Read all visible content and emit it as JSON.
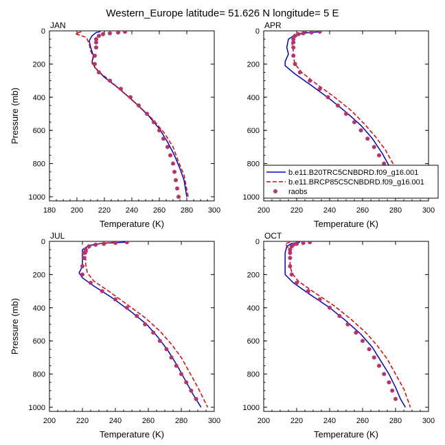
{
  "figure": {
    "title": "Western_Europe  latitude= 51.626 N longitude= 5 E"
  },
  "legend": {
    "entries": [
      {
        "label": "b.e11.B20TRC5CNBDRD.f09_g16.001",
        "style": "solid",
        "color": "#0000cc"
      },
      {
        "label": "b.e11.BRCP85C5CNBDRD.f09_g16.001",
        "style": "dashed",
        "color": "#dd0000"
      },
      {
        "label": "raobs",
        "style": "marker",
        "color": "#b8336a"
      }
    ]
  },
  "colors": {
    "model_historical": "#0000cc",
    "model_rcp85": "#dd0000",
    "raobs": "#b8336a"
  },
  "chart_data": [
    {
      "type": "line",
      "panel": "JAN",
      "title": "JAN",
      "xlabel": "Temperature (K)",
      "ylabel": "Pressure (mb)",
      "xlim": [
        180,
        300
      ],
      "ylim": [
        1025,
        0
      ],
      "xticks": [
        180,
        200,
        220,
        240,
        260,
        280,
        300
      ],
      "yticks": [
        0,
        200,
        400,
        600,
        800,
        1000
      ],
      "series": [
        {
          "name": "b.e11.B20TRC5CNBDRD.f09_g16.001",
          "style": "solid",
          "points": [
            [
              217,
              5
            ],
            [
              214,
              10
            ],
            [
              211,
              30
            ],
            [
              209,
              60
            ],
            [
              210,
              100
            ],
            [
              212,
              150
            ],
            [
              211,
              185
            ],
            [
              213,
              220
            ],
            [
              220,
              280
            ],
            [
              231,
              350
            ],
            [
              242,
              430
            ],
            [
              252,
              510
            ],
            [
              260,
              590
            ],
            [
              266,
              670
            ],
            [
              271,
              750
            ],
            [
              275,
              830
            ],
            [
              278,
              900
            ],
            [
              280,
              1000
            ]
          ]
        },
        {
          "name": "b.e11.BRCP85C5CNBDRD.f09_g16.001",
          "style": "dashed",
          "points": [
            [
              203,
              5
            ],
            [
              199,
              18
            ],
            [
              203,
              28
            ],
            [
              207,
              40
            ],
            [
              209,
              80
            ],
            [
              210,
              120
            ],
            [
              212,
              160
            ],
            [
              211,
              195
            ],
            [
              215,
              240
            ],
            [
              224,
              300
            ],
            [
              235,
              380
            ],
            [
              246,
              460
            ],
            [
              256,
              540
            ],
            [
              264,
              620
            ],
            [
              270,
              700
            ],
            [
              274,
              790
            ],
            [
              278,
              870
            ],
            [
              281,
              1000
            ]
          ]
        },
        {
          "name": "raobs",
          "style": "marker",
          "points": [
            [
              235,
              5
            ],
            [
              230,
              10
            ],
            [
              224,
              15
            ],
            [
              219,
              20
            ],
            [
              216,
              30
            ],
            [
              214,
              50
            ],
            [
              214,
              70
            ],
            [
              214,
              100
            ],
            [
              213,
              150
            ],
            [
              213,
              200
            ],
            [
              216,
              250
            ],
            [
              224,
              300
            ],
            [
              232,
              350
            ],
            [
              239,
              400
            ],
            [
              245,
              450
            ],
            [
              251,
              500
            ],
            [
              256,
              550
            ],
            [
              260,
              600
            ],
            [
              263,
              650
            ],
            [
              266,
              700
            ],
            [
              268,
              750
            ],
            [
              270,
              800
            ],
            [
              271,
              850
            ],
            [
              272,
              900
            ],
            [
              273,
              950
            ],
            [
              274,
              1000
            ]
          ]
        }
      ]
    },
    {
      "type": "line",
      "panel": "APR",
      "title": "APR",
      "xlabel": "Temperature (K)",
      "ylabel": "",
      "xlim": [
        200,
        300
      ],
      "ylim": [
        1025,
        0
      ],
      "xticks": [
        200,
        220,
        240,
        260,
        280,
        300
      ],
      "yticks": [
        0,
        200,
        400,
        600,
        800,
        1000
      ],
      "series": [
        {
          "name": "b.e11.B20TRC5CNBDRD.f09_g16.001",
          "style": "solid",
          "points": [
            [
              235,
              5
            ],
            [
              226,
              12
            ],
            [
              219,
              25
            ],
            [
              215,
              50
            ],
            [
              214,
              100
            ],
            [
              215,
              140
            ],
            [
              213,
              185
            ],
            [
              213,
              210
            ],
            [
              219,
              260
            ],
            [
              229,
              330
            ],
            [
              240,
              410
            ],
            [
              250,
              490
            ],
            [
              259,
              570
            ],
            [
              266,
              650
            ],
            [
              272,
              740
            ],
            [
              277,
              830
            ],
            [
              281,
              920
            ],
            [
              284,
              1000
            ]
          ]
        },
        {
          "name": "b.e11.BRCP85C5CNBDRD.f09_g16.001",
          "style": "dashed",
          "points": [
            [
              226,
              5
            ],
            [
              222,
              15
            ],
            [
              219,
              30
            ],
            [
              217,
              70
            ],
            [
              218,
              120
            ],
            [
              218,
              160
            ],
            [
              219,
              200
            ],
            [
              223,
              250
            ],
            [
              232,
              320
            ],
            [
              243,
              400
            ],
            [
              253,
              480
            ],
            [
              261,
              560
            ],
            [
              268,
              640
            ],
            [
              274,
              720
            ],
            [
              279,
              810
            ],
            [
              283,
              900
            ],
            [
              286,
              1000
            ]
          ]
        },
        {
          "name": "raobs",
          "style": "marker",
          "points": [
            [
              234,
              5
            ],
            [
              229,
              10
            ],
            [
              224,
              15
            ],
            [
              221,
              20
            ],
            [
              219,
              30
            ],
            [
              218,
              50
            ],
            [
              218,
              70
            ],
            [
              218,
              100
            ],
            [
              218,
              150
            ],
            [
              219,
              200
            ],
            [
              222,
              250
            ],
            [
              228,
              300
            ],
            [
              234,
              350
            ],
            [
              239,
              400
            ],
            [
              245,
              450
            ],
            [
              250,
              500
            ],
            [
              255,
              550
            ],
            [
              259,
              600
            ],
            [
              263,
              650
            ],
            [
              267,
              700
            ],
            [
              270,
              750
            ],
            [
              273,
              800
            ],
            [
              276,
              850
            ],
            [
              278,
              900
            ],
            [
              280,
              950
            ],
            [
              282,
              1000
            ]
          ]
        }
      ]
    },
    {
      "type": "line",
      "panel": "JUL",
      "title": "JUL",
      "xlabel": "Temperature (K)",
      "ylabel": "Pressure (mb)",
      "xlim": [
        200,
        300
      ],
      "ylim": [
        1025,
        0
      ],
      "xticks": [
        200,
        220,
        240,
        260,
        280,
        300
      ],
      "yticks": [
        0,
        200,
        400,
        600,
        800,
        1000
      ],
      "series": [
        {
          "name": "b.e11.B20TRC5CNBDRD.f09_g16.001",
          "style": "solid",
          "points": [
            [
              246,
              5
            ],
            [
              232,
              12
            ],
            [
              224,
              25
            ],
            [
              220,
              50
            ],
            [
              220,
              100
            ],
            [
              220,
              150
            ],
            [
              218,
              190
            ],
            [
              220,
              220
            ],
            [
              227,
              270
            ],
            [
              238,
              340
            ],
            [
              249,
              420
            ],
            [
              259,
              500
            ],
            [
              266,
              580
            ],
            [
              272,
              660
            ],
            [
              277,
              740
            ],
            [
              282,
              830
            ],
            [
              287,
              920
            ],
            [
              292,
              1000
            ]
          ]
        },
        {
          "name": "b.e11.BRCP85C5CNBDRD.f09_g16.001",
          "style": "dashed",
          "points": [
            [
              240,
              5
            ],
            [
              229,
              15
            ],
            [
              224,
              35
            ],
            [
              222,
              80
            ],
            [
              222,
              140
            ],
            [
              223,
              190
            ],
            [
              227,
              240
            ],
            [
              236,
              300
            ],
            [
              247,
              380
            ],
            [
              258,
              460
            ],
            [
              267,
              540
            ],
            [
              274,
              620
            ],
            [
              280,
              700
            ],
            [
              285,
              790
            ],
            [
              290,
              880
            ],
            [
              296,
              1000
            ]
          ]
        },
        {
          "name": "raobs",
          "style": "marker",
          "points": [
            [
              247,
              5
            ],
            [
              240,
              10
            ],
            [
              233,
              15
            ],
            [
              228,
              20
            ],
            [
              224,
              30
            ],
            [
              222,
              50
            ],
            [
              221,
              70
            ],
            [
              221,
              100
            ],
            [
              220,
              150
            ],
            [
              220,
              200
            ],
            [
              225,
              250
            ],
            [
              232,
              300
            ],
            [
              240,
              350
            ],
            [
              247,
              400
            ],
            [
              253,
              450
            ],
            [
              258,
              500
            ],
            [
              263,
              550
            ],
            [
              267,
              600
            ],
            [
              271,
              650
            ],
            [
              274,
              700
            ],
            [
              277,
              750
            ],
            [
              280,
              800
            ],
            [
              283,
              850
            ],
            [
              286,
              900
            ],
            [
              289,
              950
            ]
          ]
        }
      ]
    },
    {
      "type": "line",
      "panel": "OCT",
      "title": "OCT",
      "xlabel": "Temperature (K)",
      "ylabel": "",
      "xlim": [
        200,
        300
      ],
      "ylim": [
        1025,
        0
      ],
      "xticks": [
        200,
        220,
        240,
        260,
        280,
        300
      ],
      "yticks": [
        0,
        200,
        400,
        600,
        800,
        1000
      ],
      "series": [
        {
          "name": "b.e11.B20TRC5CNBDRD.f09_g16.001",
          "style": "solid",
          "points": [
            [
              222,
              5
            ],
            [
              217,
              12
            ],
            [
              214,
              30
            ],
            [
              213,
              70
            ],
            [
              213,
              120
            ],
            [
              213,
              160
            ],
            [
              213,
              200
            ],
            [
              218,
              250
            ],
            [
              228,
              320
            ],
            [
              240,
              400
            ],
            [
              250,
              480
            ],
            [
              259,
              560
            ],
            [
              266,
              640
            ],
            [
              271,
              720
            ],
            [
              276,
              800
            ],
            [
              280,
              880
            ],
            [
              283,
              950
            ],
            [
              286,
              1000
            ]
          ]
        },
        {
          "name": "b.e11.BRCP85C5CNBDRD.f09_g16.001",
          "style": "dashed",
          "points": [
            [
              216,
              5
            ],
            [
              213,
              15
            ],
            [
              215,
              40
            ],
            [
              216,
              90
            ],
            [
              216,
              140
            ],
            [
              217,
              190
            ],
            [
              221,
              240
            ],
            [
              231,
              310
            ],
            [
              243,
              390
            ],
            [
              253,
              470
            ],
            [
              262,
              550
            ],
            [
              269,
              630
            ],
            [
              275,
              710
            ],
            [
              280,
              800
            ],
            [
              285,
              890
            ],
            [
              289,
              1000
            ]
          ]
        },
        {
          "name": "raobs",
          "style": "marker",
          "points": [
            [
              228,
              5
            ],
            [
              224,
              10
            ],
            [
              220,
              15
            ],
            [
              218,
              20
            ],
            [
              217,
              30
            ],
            [
              216,
              50
            ],
            [
              216,
              70
            ],
            [
              216,
              100
            ],
            [
              216,
              150
            ],
            [
              217,
              200
            ],
            [
              220,
              250
            ],
            [
              227,
              300
            ],
            [
              234,
              350
            ],
            [
              240,
              400
            ],
            [
              246,
              450
            ],
            [
              251,
              500
            ],
            [
              256,
              550
            ],
            [
              260,
              600
            ],
            [
              264,
              650
            ],
            [
              267,
              700
            ],
            [
              270,
              750
            ],
            [
              273,
              800
            ],
            [
              276,
              850
            ],
            [
              278,
              900
            ],
            [
              280,
              950
            ]
          ]
        }
      ]
    }
  ]
}
